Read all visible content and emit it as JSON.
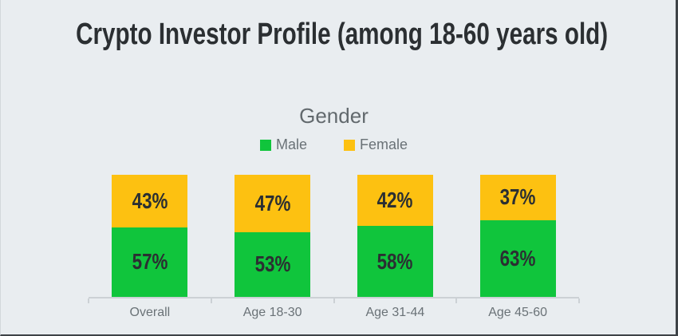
{
  "header": {
    "title": "Crypto Investor Profile (among 18-60 years old)"
  },
  "chart_data": {
    "type": "bar",
    "variant": "stacked-100-column",
    "title": "Gender",
    "categories": [
      "Overall",
      "Age 18-30",
      "Age 31-44",
      "Age 45-60"
    ],
    "series": [
      {
        "name": "Male",
        "color": "#10c53c",
        "values": [
          57,
          53,
          58,
          63
        ],
        "labels": [
          "57%",
          "53%",
          "58%",
          "63%"
        ]
      },
      {
        "name": "Female",
        "color": "#fdc111",
        "values": [
          43,
          47,
          42,
          37
        ],
        "labels": [
          "43%",
          "47%",
          "42%",
          "37%"
        ]
      }
    ],
    "ylim": [
      0,
      100
    ],
    "grid": false,
    "legend_position": "top-center",
    "value_label_position": "inside-center"
  },
  "colors": {
    "background": "#e9edf0",
    "frame_border": "#3e4347",
    "axis": "#ccd1d5",
    "gray_text": "#6a7277",
    "dark_text": "#2b2f32"
  }
}
